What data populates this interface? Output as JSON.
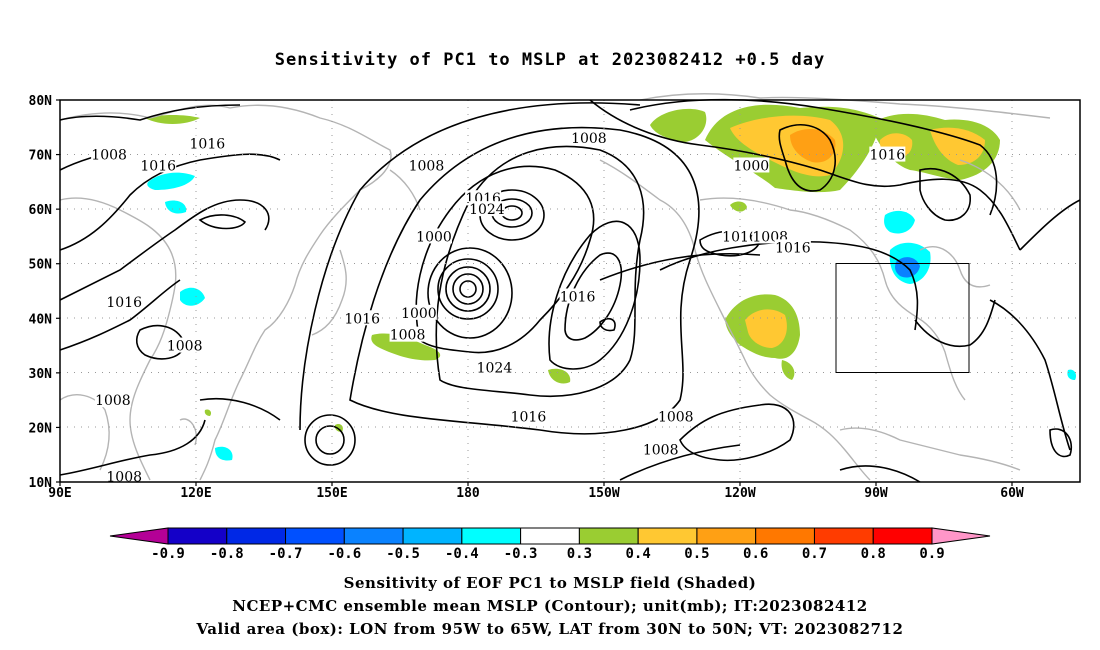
{
  "title": "Sensitivity of PC1 to MSLP at 2023082412 +0.5 day",
  "lat_labels": [
    "80N",
    "70N",
    "60N",
    "50N",
    "40N",
    "30N",
    "20N",
    "10N"
  ],
  "lon_labels": [
    "90E",
    "120E",
    "150E",
    "180",
    "150W",
    "120W",
    "90W",
    "60W"
  ],
  "contour_labels": [
    {
      "text": "1016",
      "lon": 129,
      "lat": 72
    },
    {
      "text": "1008",
      "lon": 103,
      "lat": 70
    },
    {
      "text": "1016",
      "lon": 116,
      "lat": 68
    },
    {
      "text": "1016",
      "lon": 107,
      "lat": 43
    },
    {
      "text": "1008",
      "lon": 123,
      "lat": 35
    },
    {
      "text": "1008",
      "lon": 104,
      "lat": 25
    },
    {
      "text": "1008",
      "lon": 107,
      "lat": 11
    },
    {
      "text": "1008",
      "lon": -173,
      "lat": 68
    },
    {
      "text": "1000",
      "lon": -171,
      "lat": 55
    },
    {
      "text": "1000",
      "lon": -175,
      "lat": 41
    },
    {
      "text": "1008",
      "lon": -178,
      "lat": 37
    },
    {
      "text": "1016",
      "lon": 170,
      "lat": 40
    },
    {
      "text": "1016",
      "lon": -158,
      "lat": 62
    },
    {
      "text": "1024",
      "lon": -157,
      "lat": 60
    },
    {
      "text": "1024",
      "lon": -155,
      "lat": 31
    },
    {
      "text": "1016",
      "lon": -146,
      "lat": 22
    },
    {
      "text": "1016",
      "lon": -133,
      "lat": 44
    },
    {
      "text": "1008",
      "lon": -130,
      "lat": 73
    },
    {
      "text": "1000",
      "lon": -87,
      "lat": 68
    },
    {
      "text": "1016",
      "lon": -90,
      "lat": 55
    },
    {
      "text": "1008",
      "lon": -82,
      "lat": 55
    },
    {
      "text": "1016",
      "lon": -76,
      "lat": 53
    },
    {
      "text": "1016",
      "lon": -51,
      "lat": 70
    },
    {
      "text": "1008",
      "lon": -107,
      "lat": 22
    },
    {
      "text": "1008",
      "lon": -111,
      "lat": 16
    }
  ],
  "colorbar": {
    "labels": [
      "-0.9",
      "-0.8",
      "-0.7",
      "-0.6",
      "-0.5",
      "-0.4",
      "-0.3",
      "0.3",
      "0.4",
      "0.5",
      "0.6",
      "0.7",
      "0.8",
      "0.9"
    ],
    "colors": [
      "#b40096",
      "#1400c8",
      "#0028e6",
      "#0050ff",
      "#0a82ff",
      "#00b4ff",
      "#00ffff",
      "#ffffff",
      "#9acd32",
      "#ffc832",
      "#ffa014",
      "#ff7800",
      "#ff3c00",
      "#ff0000",
      "#ff96c8"
    ]
  },
  "footer": {
    "line1": "Sensitivity of EOF PC1 to MSLP field (Shaded)",
    "line2": "NCEP+CMC ensemble mean MSLP (Contour); unit(mb); IT:2023082412",
    "line3": "Valid area (box): LON from 95W to 65W, LAT from 30N to 50N; VT: 2023082712"
  }
}
